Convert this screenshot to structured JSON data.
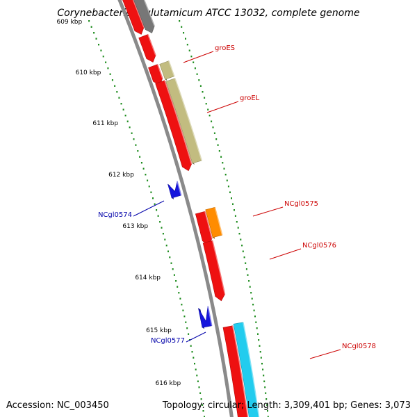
{
  "title": "Corynebacterium glutamicum ATCC 13032, complete genome",
  "accession": "Accession: NC_003450",
  "topology": "Topology: circular; Length: 3,309,401 bp; Genes: 3,073",
  "ticks": [
    "609 kbp",
    "610 kbp",
    "611 kbp",
    "612 kbp",
    "613 kbp",
    "614 kbp",
    "615 kbp",
    "616 kbp"
  ],
  "genes": [
    {
      "label": "groES",
      "strand": "plus",
      "color": "#e02020"
    },
    {
      "label": "groEL",
      "strand": "plus",
      "color": "#e02020"
    },
    {
      "label": "NCgl0574",
      "strand": "minus",
      "color": "#1010c8"
    },
    {
      "label": "NCgl0575",
      "strand": "plus",
      "color": "#e02020"
    },
    {
      "label": "NCgl0576",
      "strand": "plus",
      "color": "#e02020"
    },
    {
      "label": "NCgl0577",
      "strand": "minus",
      "color": "#1010c8"
    },
    {
      "label": "NCgl0578",
      "strand": "plus",
      "color": "#e02020"
    }
  ],
  "colors": {
    "cds": "#ee1111",
    "gene_minus": "#1515dd",
    "feature_olive": "#c2bc80",
    "feature_orange": "#ff8c00",
    "feature_cyan": "#22ccee",
    "backbone": "#8a8a8a",
    "ticks": "#1a8a1a",
    "label_plus": "#cc0000",
    "label_minus": "#0000aa"
  }
}
